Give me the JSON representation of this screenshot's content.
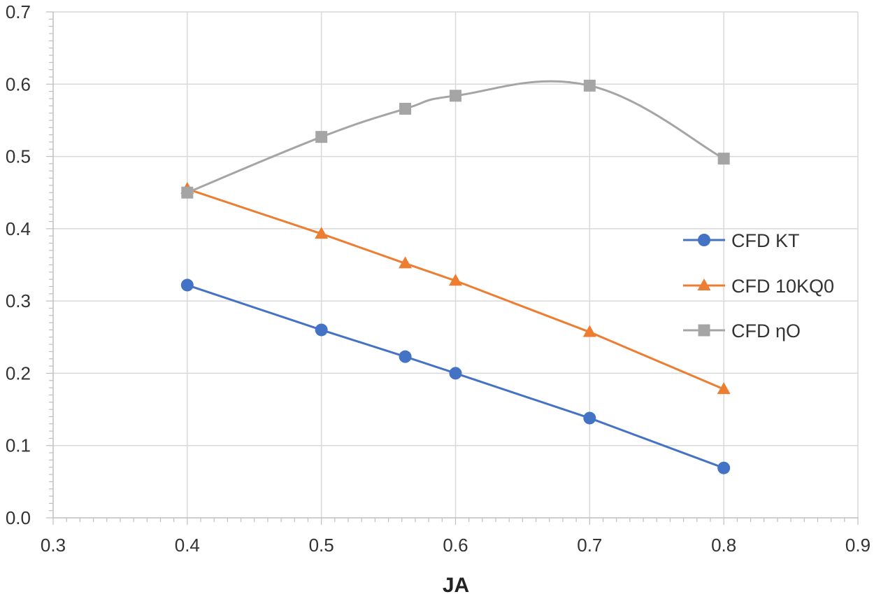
{
  "chart_data": {
    "type": "line",
    "title": "",
    "xlabel": "JA",
    "ylabel": "",
    "xlim": [
      0.3,
      0.9
    ],
    "ylim": [
      0.0,
      0.7
    ],
    "x_ticks": [
      "0.3",
      "0.4",
      "0.5",
      "0.6",
      "0.7",
      "0.8",
      "0.9"
    ],
    "y_ticks": [
      "0.0",
      "0.1",
      "0.2",
      "0.3",
      "0.4",
      "0.5",
      "0.6",
      "0.7"
    ],
    "grid": true,
    "legend_position": "right",
    "series": [
      {
        "name": "CFD KT",
        "color": "#4472C4",
        "marker": "circle",
        "smooth": false,
        "x": [
          0.4,
          0.5,
          0.5625,
          0.6,
          0.7,
          0.8
        ],
        "y": [
          0.322,
          0.26,
          0.223,
          0.2,
          0.138,
          0.069
        ]
      },
      {
        "name": "CFD 10KQ0",
        "color": "#ED7D31",
        "marker": "triangle",
        "smooth": false,
        "x": [
          0.4,
          0.5,
          0.5625,
          0.6,
          0.7,
          0.8
        ],
        "y": [
          0.455,
          0.393,
          0.352,
          0.328,
          0.257,
          0.178
        ]
      },
      {
        "name": "CFD ηO",
        "color": "#A5A5A5",
        "marker": "square",
        "smooth": true,
        "x": [
          0.4,
          0.5,
          0.5625,
          0.6,
          0.7,
          0.8
        ],
        "y": [
          0.45,
          0.527,
          0.566,
          0.584,
          0.598,
          0.497
        ]
      }
    ]
  }
}
